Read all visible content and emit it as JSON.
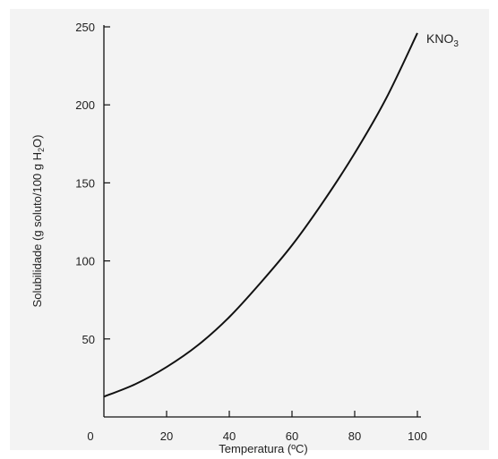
{
  "chart_data": {
    "type": "line",
    "title": "",
    "xlabel": "Temperatura (ºC)",
    "ylabel_parts": [
      "Solubilidade (g soluto/100 g H",
      "2",
      "O)"
    ],
    "xlim": [
      0,
      100
    ],
    "ylim": [
      0,
      250
    ],
    "x_ticks": [
      0,
      20,
      40,
      60,
      80,
      100
    ],
    "y_ticks": [
      50,
      100,
      150,
      200,
      250
    ],
    "grid": false,
    "series": [
      {
        "name_parts": [
          "KNO",
          "3"
        ],
        "color": "#111111",
        "x": [
          0,
          10,
          20,
          30,
          40,
          50,
          60,
          70,
          80,
          90,
          100
        ],
        "y": [
          13,
          21,
          32,
          46,
          64,
          86,
          110,
          138,
          169,
          204,
          246
        ]
      }
    ]
  }
}
